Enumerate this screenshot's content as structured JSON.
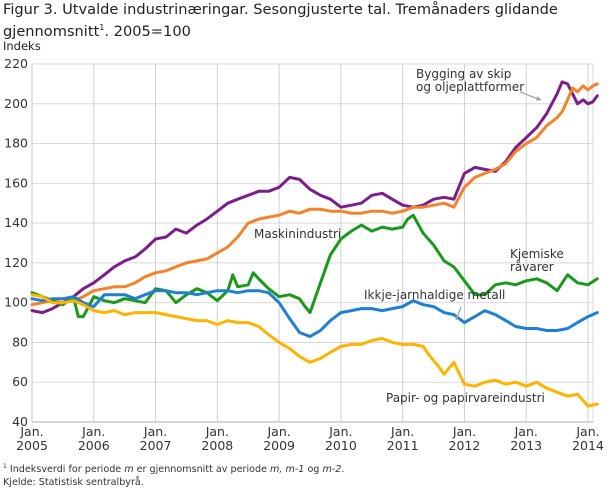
{
  "chart_data": {
    "type": "line",
    "title": "Figur 3. Utvalde industrinæringar. Sesongjusterte tal. Tremånaders glidande gjennomsnitt",
    "title_sup": "1",
    "title_suffix": ". 2005=100",
    "ylabel": "Indeks",
    "xlabel": "",
    "ylim": [
      40,
      220
    ],
    "xlim": [
      2005,
      2014.2
    ],
    "yticks": [
      40,
      60,
      80,
      100,
      120,
      140,
      160,
      180,
      200,
      220
    ],
    "xticks": [
      {
        "x": 2005,
        "line1": "Jan.",
        "line2": "2005"
      },
      {
        "x": 2006,
        "line1": "Jan.",
        "line2": "2006"
      },
      {
        "x": 2007,
        "line1": "Jan.",
        "line2": "2007"
      },
      {
        "x": 2008,
        "line1": "Jan.",
        "line2": "2008"
      },
      {
        "x": 2009,
        "line1": "Jan.",
        "line2": "2009"
      },
      {
        "x": 2010,
        "line1": "Jan.",
        "line2": "2010"
      },
      {
        "x": 2011,
        "line1": "Jan.",
        "line2": "2011"
      },
      {
        "x": 2012,
        "line1": "Jan.",
        "line2": "2012"
      },
      {
        "x": 2013,
        "line1": "Jan.",
        "line2": "2013"
      },
      {
        "x": 2014,
        "line1": "Jan.",
        "line2": "2014"
      }
    ],
    "grid": true,
    "legend": "inline-annotations",
    "series": [
      {
        "name": "Bygging av skip og oljeplattformer",
        "color": "#7b1e8c",
        "x": [
          2005.0,
          2005.17,
          2005.33,
          2005.5,
          2005.67,
          2005.83,
          2006.0,
          2006.17,
          2006.33,
          2006.5,
          2006.67,
          2006.83,
          2007.0,
          2007.17,
          2007.33,
          2007.5,
          2007.67,
          2007.83,
          2008.0,
          2008.17,
          2008.33,
          2008.5,
          2008.67,
          2008.83,
          2009.0,
          2009.17,
          2009.33,
          2009.5,
          2009.67,
          2009.83,
          2010.0,
          2010.17,
          2010.33,
          2010.5,
          2010.67,
          2010.83,
          2011.0,
          2011.17,
          2011.33,
          2011.5,
          2011.67,
          2011.83,
          2012.0,
          2012.17,
          2012.33,
          2012.5,
          2012.67,
          2012.83,
          2013.0,
          2013.17,
          2013.33,
          2013.5,
          2013.58,
          2013.67,
          2013.75,
          2013.83,
          2013.92,
          2014.0,
          2014.08,
          2014.15
        ],
        "values": [
          96,
          95,
          97,
          100,
          103,
          107,
          110,
          114,
          118,
          121,
          123,
          127,
          132,
          133,
          137,
          135,
          139,
          142,
          146,
          150,
          152,
          154,
          156,
          156,
          158,
          163,
          162,
          157,
          154,
          152,
          148,
          149,
          150,
          154,
          155,
          152,
          149,
          148,
          149,
          152,
          153,
          152,
          165,
          168,
          167,
          166,
          171,
          178,
          183,
          188,
          195,
          205,
          211,
          210,
          205,
          200,
          202,
          200,
          201,
          204
        ]
      },
      {
        "name": "Maskinindustri",
        "color": "#f5822a",
        "x": [
          2005.0,
          2005.17,
          2005.33,
          2005.5,
          2005.67,
          2005.83,
          2006.0,
          2006.17,
          2006.33,
          2006.5,
          2006.67,
          2006.83,
          2007.0,
          2007.17,
          2007.33,
          2007.5,
          2007.67,
          2007.83,
          2008.0,
          2008.17,
          2008.33,
          2008.5,
          2008.67,
          2008.83,
          2009.0,
          2009.17,
          2009.33,
          2009.5,
          2009.67,
          2009.83,
          2010.0,
          2010.17,
          2010.33,
          2010.5,
          2010.67,
          2010.83,
          2011.0,
          2011.17,
          2011.33,
          2011.5,
          2011.67,
          2011.83,
          2012.0,
          2012.17,
          2012.33,
          2012.5,
          2012.67,
          2012.83,
          2013.0,
          2013.17,
          2013.33,
          2013.5,
          2013.58,
          2013.67,
          2013.75,
          2013.83,
          2013.92,
          2014.0,
          2014.08,
          2014.15
        ],
        "values": [
          99,
          100,
          101,
          100,
          101,
          103,
          106,
          107,
          108,
          108,
          110,
          113,
          115,
          116,
          118,
          120,
          121,
          122,
          125,
          128,
          133,
          140,
          142,
          143,
          144,
          146,
          145,
          147,
          147,
          146,
          146,
          145,
          145,
          146,
          146,
          145,
          146,
          148,
          148,
          149,
          150,
          148,
          158,
          163,
          165,
          167,
          170,
          176,
          180,
          183,
          189,
          193,
          196,
          202,
          208,
          206,
          209,
          207,
          209,
          210
        ]
      },
      {
        "name": "Kjemiske råvarer",
        "color": "#1a9a1a",
        "x": [
          2005.0,
          2005.17,
          2005.33,
          2005.5,
          2005.67,
          2005.75,
          2005.83,
          2006.0,
          2006.17,
          2006.33,
          2006.5,
          2006.67,
          2006.83,
          2007.0,
          2007.17,
          2007.33,
          2007.5,
          2007.67,
          2007.83,
          2008.0,
          2008.17,
          2008.25,
          2008.33,
          2008.5,
          2008.58,
          2008.67,
          2008.83,
          2009.0,
          2009.17,
          2009.33,
          2009.42,
          2009.5,
          2009.67,
          2009.83,
          2010.0,
          2010.17,
          2010.33,
          2010.5,
          2010.67,
          2010.83,
          2011.0,
          2011.08,
          2011.17,
          2011.33,
          2011.5,
          2011.67,
          2011.83,
          2012.0,
          2012.17,
          2012.33,
          2012.5,
          2012.67,
          2012.83,
          2013.0,
          2013.17,
          2013.33,
          2013.5,
          2013.67,
          2013.83,
          2014.0,
          2014.15
        ],
        "values": [
          105,
          103,
          101,
          99,
          103,
          93,
          93,
          103,
          101,
          100,
          102,
          101,
          100,
          107,
          106,
          100,
          104,
          107,
          105,
          101,
          106,
          114,
          108,
          109,
          115,
          112,
          107,
          103,
          104,
          102,
          98,
          95,
          110,
          124,
          132,
          136,
          139,
          136,
          138,
          137,
          138,
          142,
          144,
          135,
          129,
          121,
          118,
          111,
          104,
          104,
          109,
          110,
          109,
          111,
          112,
          110,
          106,
          114,
          110,
          109,
          112
        ]
      },
      {
        "name": "Ikkje-jarnhaldige metall",
        "color": "#1d7fd6",
        "x": [
          2005.0,
          2005.17,
          2005.33,
          2005.5,
          2005.67,
          2005.83,
          2006.0,
          2006.17,
          2006.33,
          2006.5,
          2006.67,
          2006.83,
          2007.0,
          2007.17,
          2007.33,
          2007.5,
          2007.67,
          2007.83,
          2008.0,
          2008.17,
          2008.33,
          2008.5,
          2008.67,
          2008.83,
          2009.0,
          2009.17,
          2009.33,
          2009.5,
          2009.67,
          2009.83,
          2010.0,
          2010.17,
          2010.33,
          2010.5,
          2010.67,
          2010.83,
          2011.0,
          2011.17,
          2011.33,
          2011.5,
          2011.67,
          2011.83,
          2012.0,
          2012.17,
          2012.33,
          2012.5,
          2012.67,
          2012.83,
          2013.0,
          2013.17,
          2013.33,
          2013.5,
          2013.67,
          2013.83,
          2014.0,
          2014.15
        ],
        "values": [
          102,
          101,
          102,
          102,
          103,
          100,
          98,
          104,
          104,
          104,
          102,
          104,
          106,
          106,
          105,
          105,
          104,
          105,
          106,
          106,
          105,
          106,
          106,
          105,
          100,
          92,
          85,
          83,
          86,
          91,
          95,
          96,
          97,
          97,
          96,
          97,
          98,
          101,
          99,
          98,
          95,
          94,
          90,
          93,
          96,
          94,
          91,
          88,
          87,
          87,
          86,
          86,
          87,
          90,
          93,
          95
        ]
      },
      {
        "name": "Papir- og papirvareindustri",
        "color": "#ffb300",
        "x": [
          2005.0,
          2005.17,
          2005.33,
          2005.5,
          2005.67,
          2005.83,
          2006.0,
          2006.17,
          2006.33,
          2006.5,
          2006.67,
          2006.83,
          2007.0,
          2007.17,
          2007.33,
          2007.5,
          2007.67,
          2007.83,
          2008.0,
          2008.17,
          2008.33,
          2008.5,
          2008.67,
          2008.83,
          2009.0,
          2009.17,
          2009.33,
          2009.5,
          2009.67,
          2009.83,
          2010.0,
          2010.17,
          2010.33,
          2010.5,
          2010.67,
          2010.83,
          2011.0,
          2011.17,
          2011.33,
          2011.42,
          2011.58,
          2011.67,
          2011.83,
          2012.0,
          2012.17,
          2012.33,
          2012.5,
          2012.67,
          2012.83,
          2013.0,
          2013.17,
          2013.33,
          2013.5,
          2013.67,
          2013.83,
          2014.0,
          2014.15
        ],
        "values": [
          104,
          103,
          100,
          100,
          101,
          99,
          96,
          95,
          96,
          94,
          95,
          95,
          95,
          94,
          93,
          92,
          91,
          91,
          89,
          91,
          90,
          90,
          88,
          84,
          80,
          77,
          73,
          70,
          72,
          75,
          78,
          79,
          79,
          81,
          82,
          80,
          79,
          79,
          78,
          74,
          68,
          64,
          70,
          59,
          58,
          60,
          61,
          59,
          60,
          58,
          60,
          57,
          55,
          53,
          54,
          48,
          49
        ]
      }
    ],
    "annotations": [
      {
        "text_line1": "Bygging av skip",
        "text_line2": "og oljeplattformer",
        "target_series": "Bygging av skip og oljeplattformer",
        "arrow": true
      },
      {
        "text_line1": "Maskinindustri",
        "target_series": "Maskinindustri",
        "arrow": false
      },
      {
        "text_line1": "Kjemiske",
        "text_line2": "råvarer",
        "target_series": "Kjemiske råvarer",
        "arrow": false
      },
      {
        "text_line1": "Ikkje-jarnhaldige metall",
        "target_series": "Ikkje-jarnhaldige metall",
        "arrow": true
      },
      {
        "text_line1": "Papir- og papirvareindustri",
        "target_series": "Papir- og papirvareindustri",
        "arrow": false
      }
    ]
  },
  "footnote": {
    "sup": "1",
    "text_a": " Indeksverdi for periode ",
    "m1": "m",
    "text_b": " er gjennomsnitt av periode ",
    "m2": "m, m-1",
    "text_c": " og ",
    "m3": "m-2",
    "text_d": ".",
    "source": "Kjelde: Statistisk sentralbyrå."
  }
}
